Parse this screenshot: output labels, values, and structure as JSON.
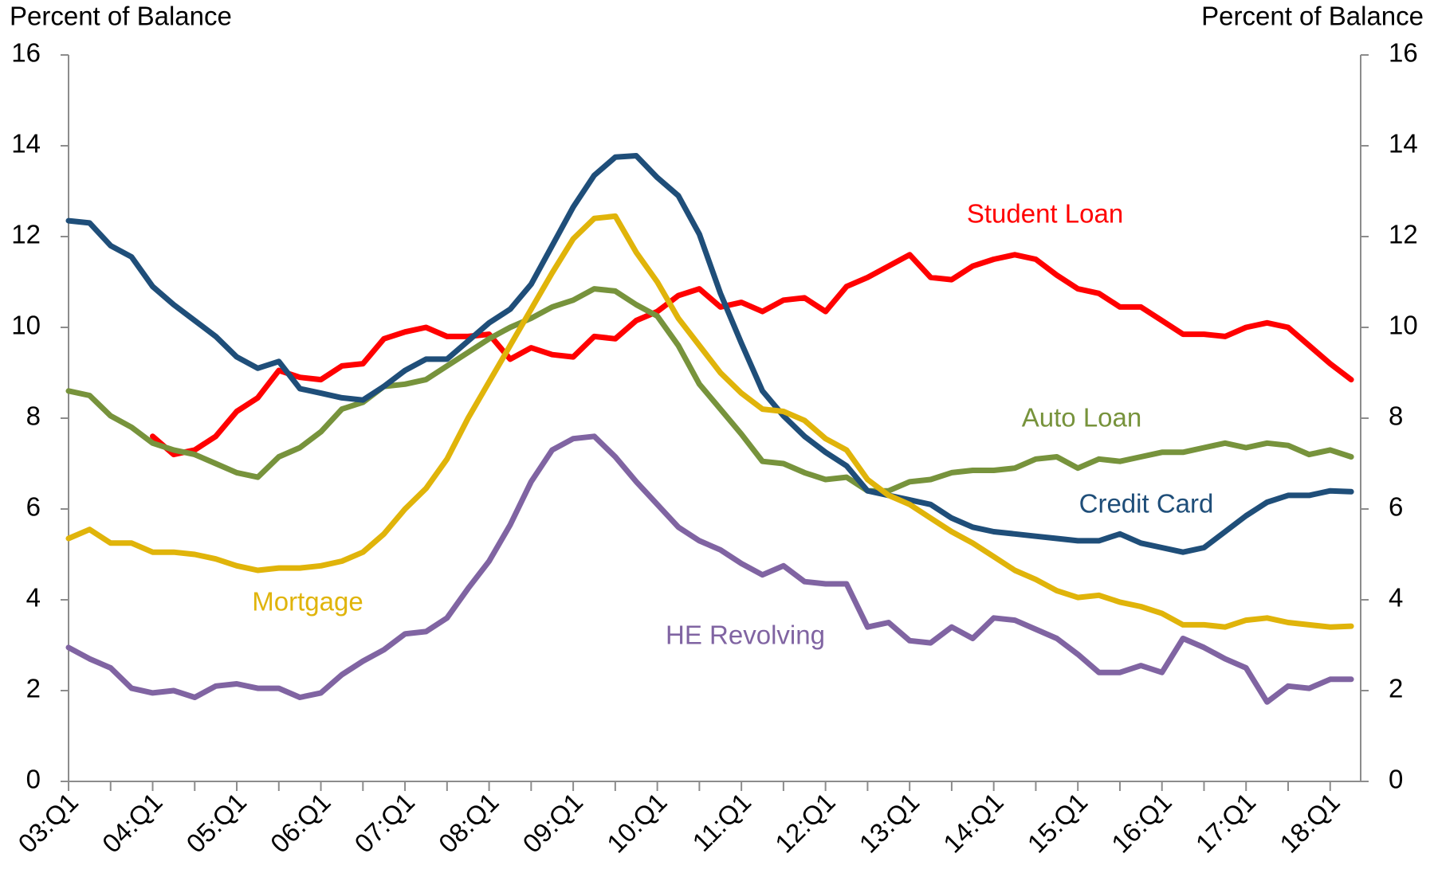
{
  "chart_data": {
    "type": "line",
    "y_label": "Percent of Balance",
    "y2_label": "Percent of Balance",
    "categories": [
      "03:Q1",
      null,
      null,
      null,
      "04:Q1",
      null,
      null,
      null,
      "05:Q1",
      null,
      null,
      null,
      "06:Q1",
      null,
      null,
      null,
      "07:Q1",
      null,
      null,
      null,
      "08:Q1",
      null,
      null,
      null,
      "09:Q1",
      null,
      null,
      null,
      "10:Q1",
      null,
      null,
      null,
      "11:Q1",
      null,
      null,
      null,
      "12:Q1",
      null,
      null,
      null,
      "13:Q1",
      null,
      null,
      null,
      "14:Q1",
      null,
      null,
      null,
      "15:Q1",
      null,
      null,
      null,
      "16:Q1",
      null,
      null,
      null,
      "17:Q1",
      null,
      null,
      null,
      "18:Q1",
      null
    ],
    "series": [
      {
        "name": "Student Loan",
        "color": "#ff0000",
        "values": [
          null,
          null,
          null,
          null,
          7.6,
          7.2,
          7.3,
          7.6,
          8.15,
          8.45,
          9.05,
          8.9,
          8.85,
          9.15,
          9.2,
          9.75,
          9.9,
          10.0,
          9.8,
          9.8,
          9.85,
          9.3,
          9.55,
          9.4,
          9.35,
          9.8,
          9.75,
          10.15,
          10.35,
          10.7,
          10.85,
          10.45,
          10.55,
          10.35,
          10.6,
          10.65,
          10.35,
          10.9,
          11.1,
          11.35,
          11.6,
          11.1,
          11.05,
          11.35,
          11.5,
          11.6,
          11.5,
          11.15,
          10.85,
          10.75,
          10.45,
          10.45,
          10.15,
          9.85,
          9.85,
          9.8,
          10.0,
          10.1,
          10.0,
          9.6,
          9.2,
          8.85
        ]
      },
      {
        "name": "Auto Loan",
        "color": "#77933c",
        "values": [
          8.6,
          8.5,
          8.05,
          7.8,
          7.45,
          7.3,
          7.2,
          7.0,
          6.8,
          6.7,
          7.15,
          7.35,
          7.7,
          8.2,
          8.35,
          8.7,
          8.75,
          8.85,
          9.15,
          9.45,
          9.75,
          10.0,
          10.2,
          10.45,
          10.6,
          10.85,
          10.8,
          10.5,
          10.25,
          9.6,
          8.75,
          8.2,
          7.65,
          7.05,
          7.0,
          6.8,
          6.65,
          6.7,
          6.4,
          6.4,
          6.6,
          6.65,
          6.8,
          6.85,
          6.85,
          6.9,
          7.1,
          7.15,
          6.9,
          7.1,
          7.05,
          7.15,
          7.25,
          7.25,
          7.35,
          7.45,
          7.35,
          7.45,
          7.4,
          7.2,
          7.3,
          7.15
        ]
      },
      {
        "name": "Credit Card",
        "color": "#1f4e79",
        "values": [
          12.35,
          12.3,
          11.8,
          11.55,
          10.9,
          10.5,
          10.15,
          9.8,
          9.35,
          9.1,
          9.25,
          8.65,
          8.55,
          8.45,
          8.4,
          8.7,
          9.05,
          9.3,
          9.3,
          9.7,
          10.1,
          10.4,
          10.95,
          11.8,
          12.65,
          13.35,
          13.75,
          13.78,
          13.3,
          12.9,
          12.05,
          10.75,
          9.65,
          8.6,
          8.05,
          7.6,
          7.25,
          6.95,
          6.4,
          6.3,
          6.2,
          6.1,
          5.8,
          5.6,
          5.5,
          5.45,
          5.4,
          5.35,
          5.3,
          5.3,
          5.45,
          5.25,
          5.15,
          5.05,
          5.15,
          5.5,
          5.85,
          6.15,
          6.3,
          6.3,
          6.4,
          6.38
        ]
      },
      {
        "name": "Mortgage",
        "color": "#e0b40a",
        "values": [
          5.35,
          5.55,
          5.25,
          5.25,
          5.05,
          5.05,
          5.0,
          4.9,
          4.75,
          4.65,
          4.7,
          4.7,
          4.75,
          4.85,
          5.05,
          5.45,
          6.0,
          6.45,
          7.1,
          8.0,
          8.8,
          9.6,
          10.4,
          11.2,
          11.95,
          12.4,
          12.45,
          11.65,
          11.0,
          10.2,
          9.6,
          9.0,
          8.55,
          8.2,
          8.15,
          7.95,
          7.55,
          7.3,
          6.65,
          6.3,
          6.1,
          5.8,
          5.5,
          5.25,
          4.95,
          4.65,
          4.45,
          4.2,
          4.05,
          4.1,
          3.95,
          3.85,
          3.7,
          3.45,
          3.45,
          3.4,
          3.55,
          3.6,
          3.5,
          3.45,
          3.4,
          3.42
        ]
      },
      {
        "name": "HE Revolving",
        "color": "#8064a2",
        "values": [
          2.95,
          2.7,
          2.5,
          2.05,
          1.95,
          2.0,
          1.85,
          2.1,
          2.15,
          2.05,
          2.05,
          1.85,
          1.95,
          2.35,
          2.65,
          2.9,
          3.25,
          3.3,
          3.6,
          4.25,
          4.85,
          5.65,
          6.6,
          7.3,
          7.55,
          7.6,
          7.15,
          6.6,
          6.1,
          5.6,
          5.3,
          5.1,
          4.8,
          4.55,
          4.75,
          4.4,
          4.35,
          4.35,
          3.4,
          3.5,
          3.1,
          3.05,
          3.4,
          3.15,
          3.6,
          3.55,
          3.35,
          3.15,
          2.8,
          2.4,
          2.4,
          2.55,
          2.4,
          3.15,
          2.95,
          2.7,
          2.5,
          1.75,
          2.1,
          2.05,
          2.25,
          2.25
        ]
      }
    ],
    "ylim": [
      0,
      16
    ],
    "yticks": [
      0,
      2,
      4,
      6,
      8,
      10,
      12,
      14,
      16
    ],
    "y2lim": [
      0,
      16
    ],
    "y2ticks": [
      0,
      2,
      4,
      6,
      8,
      10,
      12,
      14,
      16
    ],
    "grid": false
  }
}
